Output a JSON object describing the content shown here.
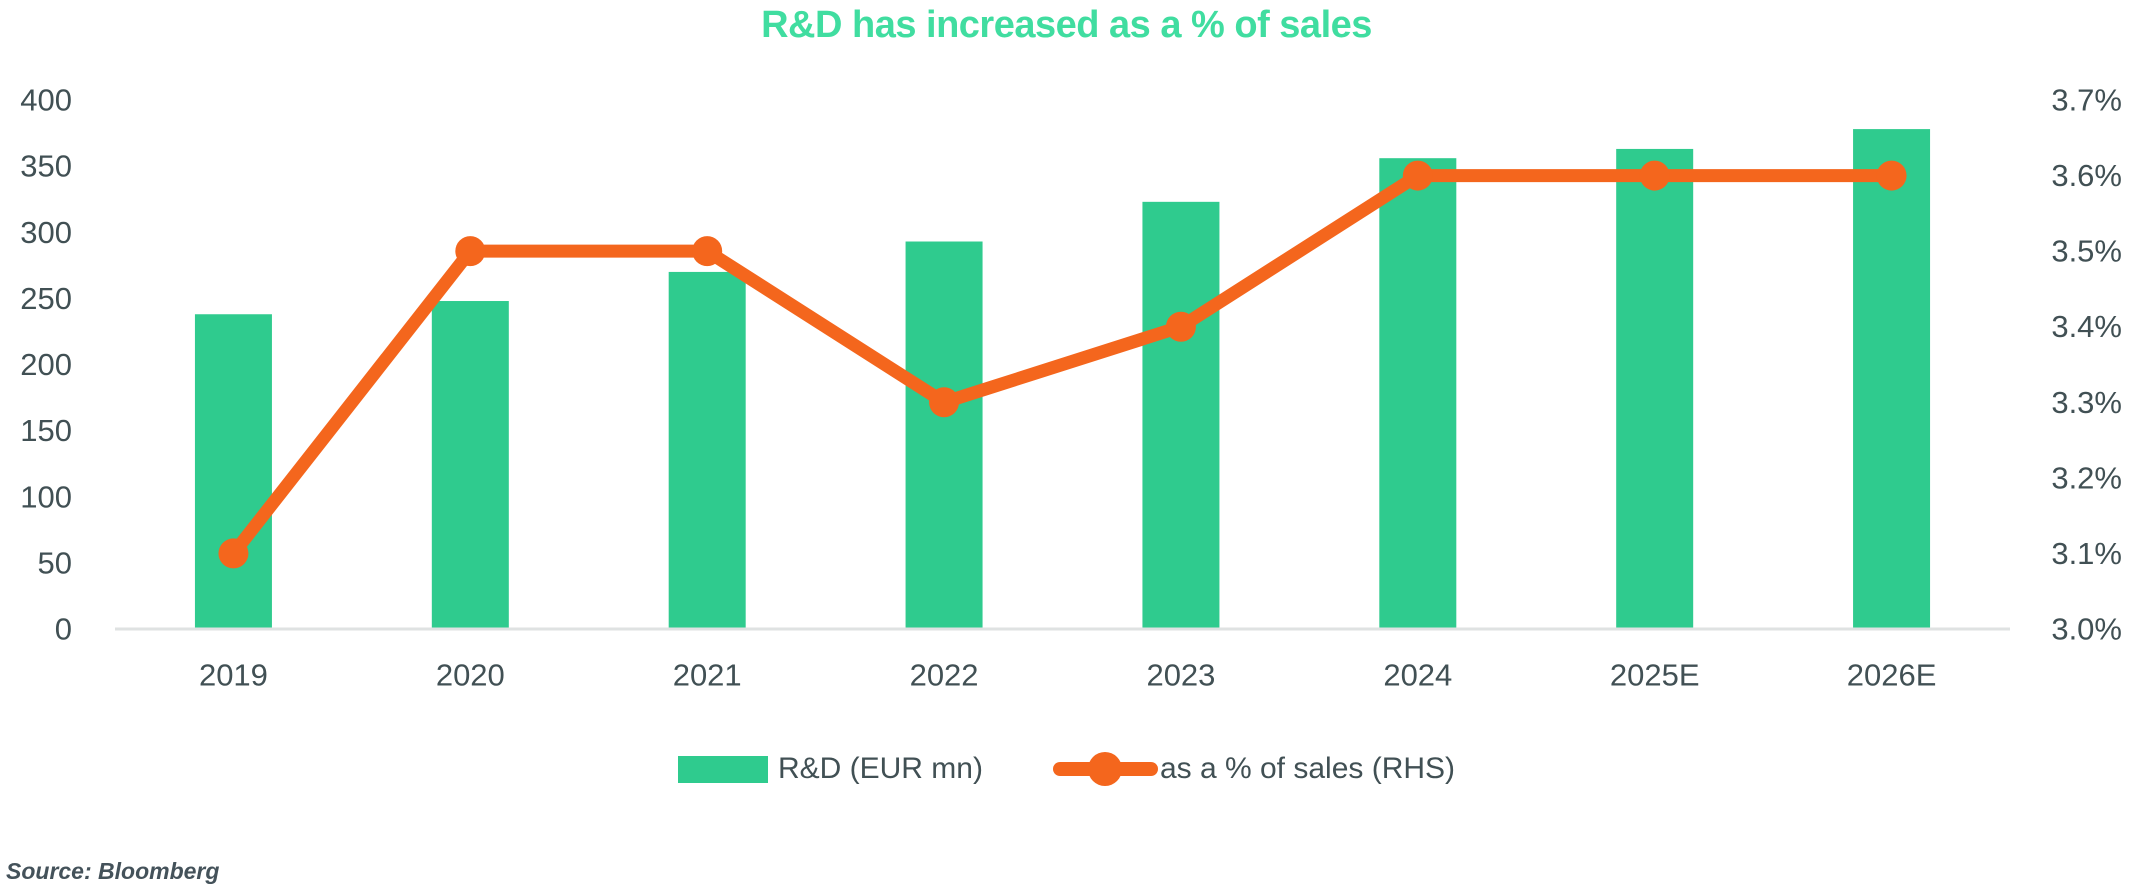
{
  "source": "Source: Bloomberg",
  "chart_data": {
    "type": "combo-bar-line",
    "title": "R&D has increased as a % of sales",
    "categories": [
      "2019",
      "2020",
      "2021",
      "2022",
      "2023",
      "2024",
      "2025E",
      "2026E"
    ],
    "series": [
      {
        "name": "R&D (EUR mn)",
        "type": "bar",
        "axis": "left",
        "values": [
          238,
          248,
          270,
          293,
          323,
          356,
          363,
          378
        ]
      },
      {
        "name": "as a % of sales (RHS)",
        "type": "line",
        "axis": "right",
        "values": [
          3.1,
          3.5,
          3.5,
          3.3,
          3.4,
          3.6,
          3.6,
          3.6
        ]
      }
    ],
    "left_axis": {
      "min": 0,
      "max": 400,
      "step": 50,
      "tick_labels": [
        "0",
        "50",
        "100",
        "150",
        "200",
        "250",
        "300",
        "350",
        "400"
      ]
    },
    "right_axis": {
      "min": 3.0,
      "max": 3.7,
      "step": 0.1,
      "tick_labels": [
        "3.0%",
        "3.1%",
        "3.2%",
        "3.3%",
        "3.4%",
        "3.5%",
        "3.6%",
        "3.7%"
      ]
    },
    "grid": false,
    "legend_position": "bottom",
    "colors": {
      "bar_green": "#2fcb8e",
      "line_orange": "#f4661d",
      "title_green": "#40dda0",
      "axis_text": "#415054",
      "baseline_gray": "#dfe2e2"
    }
  }
}
